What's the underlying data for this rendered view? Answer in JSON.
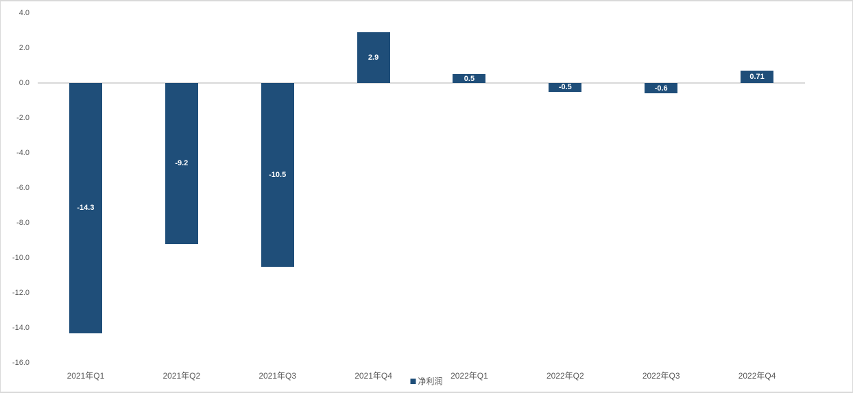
{
  "chart_data": {
    "type": "bar",
    "categories": [
      "2021年Q1",
      "2021年Q2",
      "2021年Q3",
      "2021年Q4",
      "2022年Q1",
      "2022年Q2",
      "2022年Q3",
      "2022年Q4"
    ],
    "series": [
      {
        "name": "净利润",
        "values": [
          -14.3,
          -9.2,
          -10.5,
          2.9,
          0.5,
          -0.5,
          -0.6,
          0.71
        ],
        "value_labels": [
          "-14.3",
          "-9.2",
          "-10.5",
          "2.9",
          "0.5",
          "-0.5",
          "-0.6",
          "0.71"
        ]
      }
    ],
    "y_ticks": [
      "4.0",
      "2.0",
      "0.0",
      "-2.0",
      "-4.0",
      "-6.0",
      "-8.0",
      "-10.0",
      "-12.0",
      "-14.0",
      "-16.0"
    ],
    "ylim": [
      -16.0,
      4.0
    ],
    "grid": "zero-line-only",
    "legend": {
      "label": "净利润",
      "position": "bottom-center"
    },
    "colors": {
      "bar": "#1f4e79",
      "axis_text": "#595959",
      "zero_line": "#d9d9d9",
      "bar_label_text": "#ffffff",
      "frame_border": "#d9d9d9"
    }
  }
}
